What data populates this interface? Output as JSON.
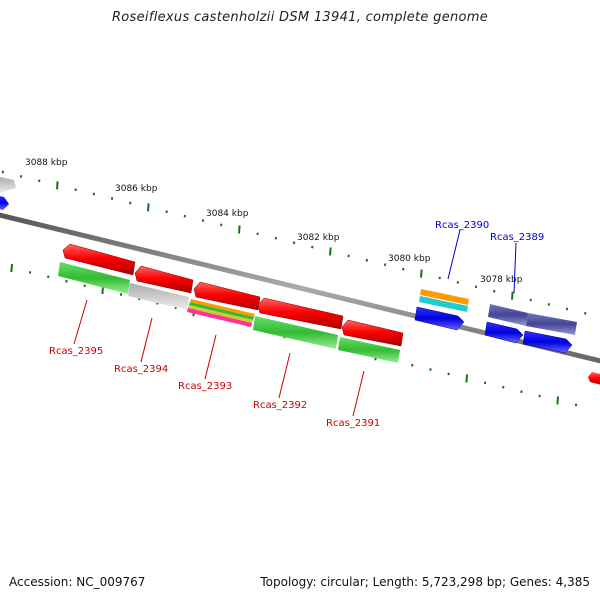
{
  "title": "Roseiflexus castenholzii DSM 13941, complete genome",
  "footer": {
    "accession": "Accession: NC_009767",
    "summary": "Topology: circular; Length: 5,723,298 bp; Genes: 4,385"
  },
  "scale_labels": [
    "3088 kbp",
    "3086 kbp",
    "3084 kbp",
    "3082 kbp",
    "3080 kbp",
    "3078 kbp"
  ],
  "gene_labels": [
    {
      "text": "Rcas_2395",
      "strand": "reverse"
    },
    {
      "text": "Rcas_2394",
      "strand": "reverse"
    },
    {
      "text": "Rcas_2393",
      "strand": "reverse"
    },
    {
      "text": "Rcas_2392",
      "strand": "reverse"
    },
    {
      "text": "Rcas_2391",
      "strand": "reverse"
    },
    {
      "text": "Rcas_2390",
      "strand": "forward"
    },
    {
      "text": "Rcas_2389",
      "strand": "forward"
    }
  ],
  "colors": {
    "cds": "#ff0000",
    "cog_green": "#33cc33",
    "cog_grey": "#bbbbbb",
    "cog_blue": "#0000ee",
    "cog_navy": "#444499",
    "cog_orange": "#ff9900",
    "cog_cyan": "#22cccc",
    "cog_pink": "#ff3399",
    "cog_yellow": "#cccc33",
    "backbone": "#888888",
    "tick": "#117711",
    "reverse_label": "#cc0000",
    "forward_label": "#0000cc"
  }
}
